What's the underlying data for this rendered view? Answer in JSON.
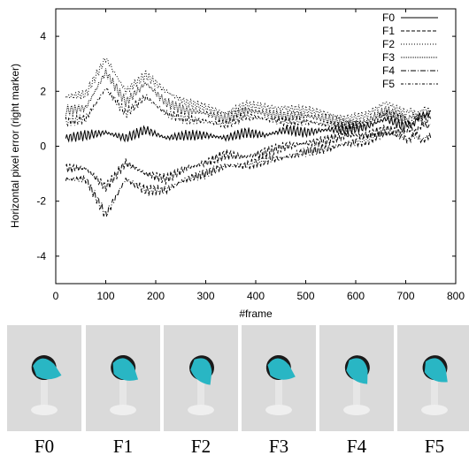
{
  "chart_data": {
    "type": "line",
    "title": "",
    "xlabel": "#frame",
    "ylabel": "Horizontal pixel error (right marker)",
    "xlim": [
      0,
      800
    ],
    "ylim": [
      -5,
      5
    ],
    "xticks": [
      "0",
      "100",
      "200",
      "300",
      "400",
      "500",
      "600",
      "700",
      "800"
    ],
    "yticks": [
      "-4",
      "-2",
      "0",
      "2",
      "4"
    ],
    "legend_position": "top-right",
    "grid": false,
    "series": [
      {
        "name": "F0",
        "dash": "",
        "x": [
          20,
          60,
          100,
          140,
          180,
          220,
          260,
          300,
          340,
          380,
          420,
          460,
          500,
          540,
          580,
          620,
          660,
          700,
          750
        ],
        "y": [
          0.3,
          0.4,
          0.5,
          0.3,
          0.6,
          0.3,
          0.4,
          0.4,
          0.3,
          0.5,
          0.4,
          0.6,
          0.5,
          0.6,
          0.6,
          0.7,
          1.0,
          0.7,
          1.3
        ]
      },
      {
        "name": "F1",
        "dash": "4,2",
        "x": [
          20,
          60,
          100,
          140,
          180,
          220,
          260,
          300,
          340,
          380,
          420,
          460,
          500,
          540,
          580,
          620,
          660,
          700,
          750
        ],
        "y": [
          -0.8,
          -0.8,
          -1.5,
          -0.6,
          -1.0,
          -1.2,
          -0.8,
          -0.6,
          -0.3,
          -0.4,
          -0.2,
          0.0,
          0.1,
          0.2,
          0.4,
          0.4,
          0.6,
          0.5,
          0.8
        ]
      },
      {
        "name": "F2",
        "dash": "1,2",
        "x": [
          20,
          60,
          100,
          140,
          180,
          220,
          260,
          300,
          340,
          380,
          420,
          460,
          500,
          540,
          580,
          620,
          660,
          700,
          750
        ],
        "y": [
          1.8,
          1.9,
          3.2,
          2.0,
          2.6,
          2.0,
          1.6,
          1.4,
          1.2,
          1.5,
          1.4,
          1.4,
          1.3,
          1.2,
          1.0,
          1.1,
          1.6,
          1.2,
          1.3
        ]
      },
      {
        "name": "F3",
        "dash": "1,1",
        "x": [
          20,
          60,
          100,
          140,
          180,
          220,
          260,
          300,
          340,
          380,
          420,
          460,
          500,
          540,
          580,
          620,
          660,
          700,
          750
        ],
        "y": [
          1.3,
          1.4,
          2.7,
          1.6,
          2.3,
          1.6,
          1.3,
          1.2,
          1.0,
          1.3,
          1.2,
          1.1,
          1.1,
          1.0,
          0.8,
          0.9,
          1.3,
          1.0,
          1.1
        ]
      },
      {
        "name": "F4",
        "dash": "6,2,1,2",
        "x": [
          20,
          60,
          100,
          140,
          180,
          220,
          260,
          300,
          340,
          380,
          420,
          460,
          500,
          540,
          580,
          620,
          660,
          700,
          750
        ],
        "y": [
          -1.2,
          -1.2,
          -2.5,
          -1.2,
          -1.6,
          -1.6,
          -1.2,
          -1.0,
          -0.7,
          -0.7,
          -0.5,
          -0.4,
          -0.2,
          -0.1,
          0.1,
          0.2,
          0.5,
          0.3,
          0.3
        ]
      },
      {
        "name": "F5",
        "dash": "3,2,1,2",
        "x": [
          20,
          60,
          100,
          140,
          180,
          220,
          260,
          300,
          340,
          380,
          420,
          460,
          500,
          540,
          580,
          620,
          660,
          700,
          750
        ],
        "y": [
          0.9,
          1.0,
          2.1,
          1.2,
          1.8,
          1.2,
          1.0,
          0.9,
          0.8,
          1.1,
          1.0,
          0.9,
          0.9,
          0.8,
          0.7,
          0.8,
          1.2,
          0.9,
          1.0
        ]
      }
    ]
  },
  "thumbnails": [
    {
      "caption": "F0",
      "ring": "#1a1a1a"
    },
    {
      "caption": "F1",
      "ring": "#1a1a1a"
    },
    {
      "caption": "F2",
      "ring": "#1a1a1a"
    },
    {
      "caption": "F3",
      "ring": "#1a1a1a"
    },
    {
      "caption": "F4",
      "ring": "#1a1a1a"
    },
    {
      "caption": "F5",
      "ring": "#1a1a1a"
    }
  ],
  "colors": {
    "marker": "#29b6c4",
    "line": "#000000",
    "thumb_bg": "#d9d9d9"
  }
}
